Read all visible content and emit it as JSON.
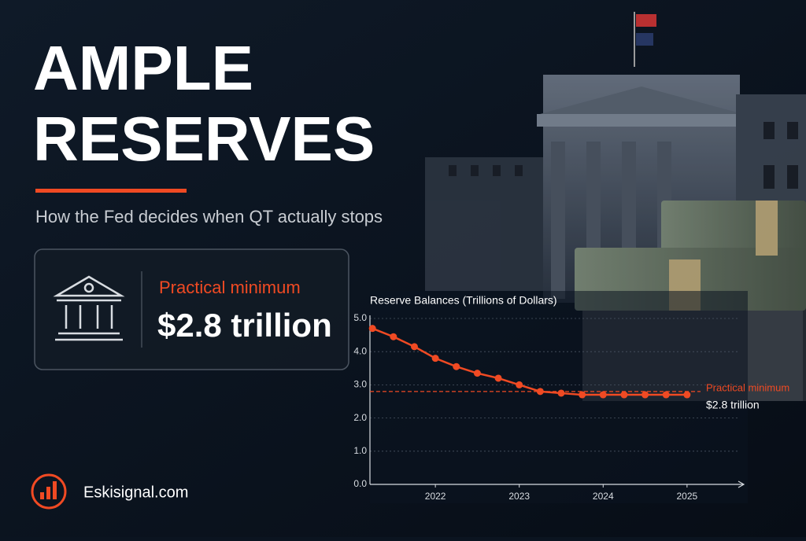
{
  "header": {
    "title_line1": "AMPLE",
    "title_line2": "RESERVES",
    "subtitle": "How the Fed decides when QT actually stops"
  },
  "card": {
    "label": "Practical minimum",
    "value": "$2.8 trillion"
  },
  "footer": {
    "brand": "Eskisignal.com"
  },
  "chart_data": {
    "type": "line",
    "title": "Reserve Balances (Trillions of Dollars)",
    "x": [
      2021.25,
      2021.5,
      2021.75,
      2022,
      2022.25,
      2022.5,
      2022.75,
      2023,
      2023.25,
      2023.5,
      2023.75,
      2024,
      2024.25,
      2024.5,
      2024.75,
      2025
    ],
    "series": [
      {
        "color": "#f04a23",
        "values": [
          4.7,
          4.45,
          4.15,
          3.8,
          3.55,
          3.35,
          3.2,
          3.0,
          2.8,
          2.75,
          2.7,
          2.7,
          2.7,
          2.7,
          2.7,
          2.7
        ]
      }
    ],
    "xlim": [
      2021.22,
      2025.63
    ],
    "xticks": [
      2022,
      2023,
      2024,
      2025
    ],
    "ylim": [
      0,
      5
    ],
    "yticks": [
      {
        "value": 0,
        "label": "0.0"
      },
      {
        "value": 1,
        "label": "1.0"
      },
      {
        "value": 2,
        "label": "2.0"
      },
      {
        "value": 3,
        "label": "3.0"
      },
      {
        "value": 4,
        "label": "4.0"
      },
      {
        "value": 5,
        "label": "5.0"
      }
    ],
    "grid": true,
    "reference": {
      "value": 2.8,
      "label": "Practical minimum",
      "value_label": "$2.8 trillion",
      "color": "#f04a23"
    }
  }
}
